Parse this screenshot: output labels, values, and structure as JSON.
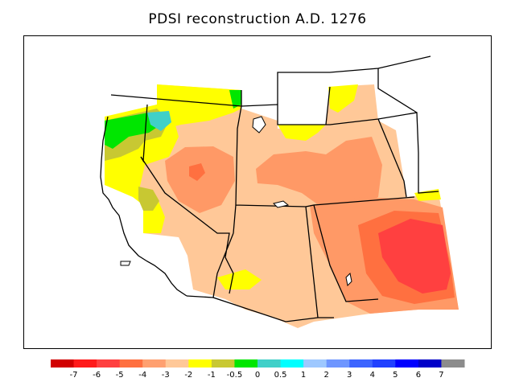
{
  "title": "PDSI reconstruction A.D. 1276",
  "colorbar": {
    "colors": [
      "#d10000",
      "#ff1a1a",
      "#ff4040",
      "#ff7040",
      "#ffa070",
      "#ffc898",
      "#ffff00",
      "#c8c832",
      "#00e600",
      "#40d0c8",
      "#00ffff",
      "#9ec8ff",
      "#6e96ff",
      "#3c64ff",
      "#2040ff",
      "#0000ff",
      "#0000c8",
      "#8c8c8c"
    ],
    "labels": [
      "-7",
      "-6",
      "-5",
      "-4",
      "-3",
      "-2",
      "-1",
      "-0.5",
      "0",
      "0.5",
      "1",
      "2",
      "3",
      "4",
      "5",
      "6",
      "7"
    ]
  },
  "field_colors": {
    "base": "#ffc898",
    "dry": "#ff9966",
    "drier": "#ff7040",
    "driest": "#ff4040",
    "wet1": "#ffff00",
    "wet2": "#c8c832",
    "wet3": "#00e600",
    "wet4": "#40d0c8"
  }
}
